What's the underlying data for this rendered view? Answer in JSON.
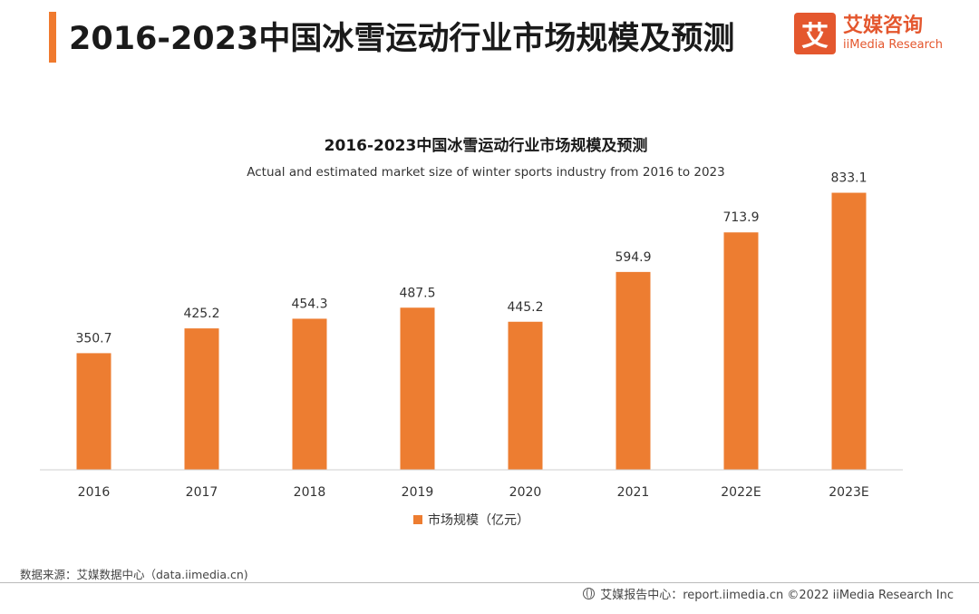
{
  "header": {
    "title": "2016-2023中国冰雪运动行业市场规模及预测",
    "logo_cn": "艾媒咨询",
    "logo_en": "iiMedia Research",
    "logo_mark": "艾"
  },
  "chart_data": {
    "type": "bar",
    "title": "2016-2023中国冰雪运动行业市场规模及预测",
    "subtitle": "Actual and estimated market size of winter sports industry from 2016 to 2023",
    "categories": [
      "2016",
      "2017",
      "2018",
      "2019",
      "2020",
      "2021",
      "2022E",
      "2023E"
    ],
    "series": [
      {
        "name": "市场规模（亿元）",
        "values": [
          350.7,
          425.2,
          454.3,
          487.5,
          445.2,
          594.9,
          713.9,
          833.1
        ]
      }
    ],
    "ylim": [
      0,
      900
    ],
    "xlabel": "",
    "ylabel": "",
    "grid": false,
    "legend_position": "bottom",
    "bar_color": "#ed7d31"
  },
  "footer": {
    "source": "数据来源：艾媒数据中心（data.iimedia.cn)",
    "report": "艾媒报告中心：report.iimedia.cn    ©2022  iiMedia Research  Inc"
  },
  "colors": {
    "accent": "#f07a2e",
    "brand": "#e4572e",
    "bar": "#ed7d31"
  }
}
